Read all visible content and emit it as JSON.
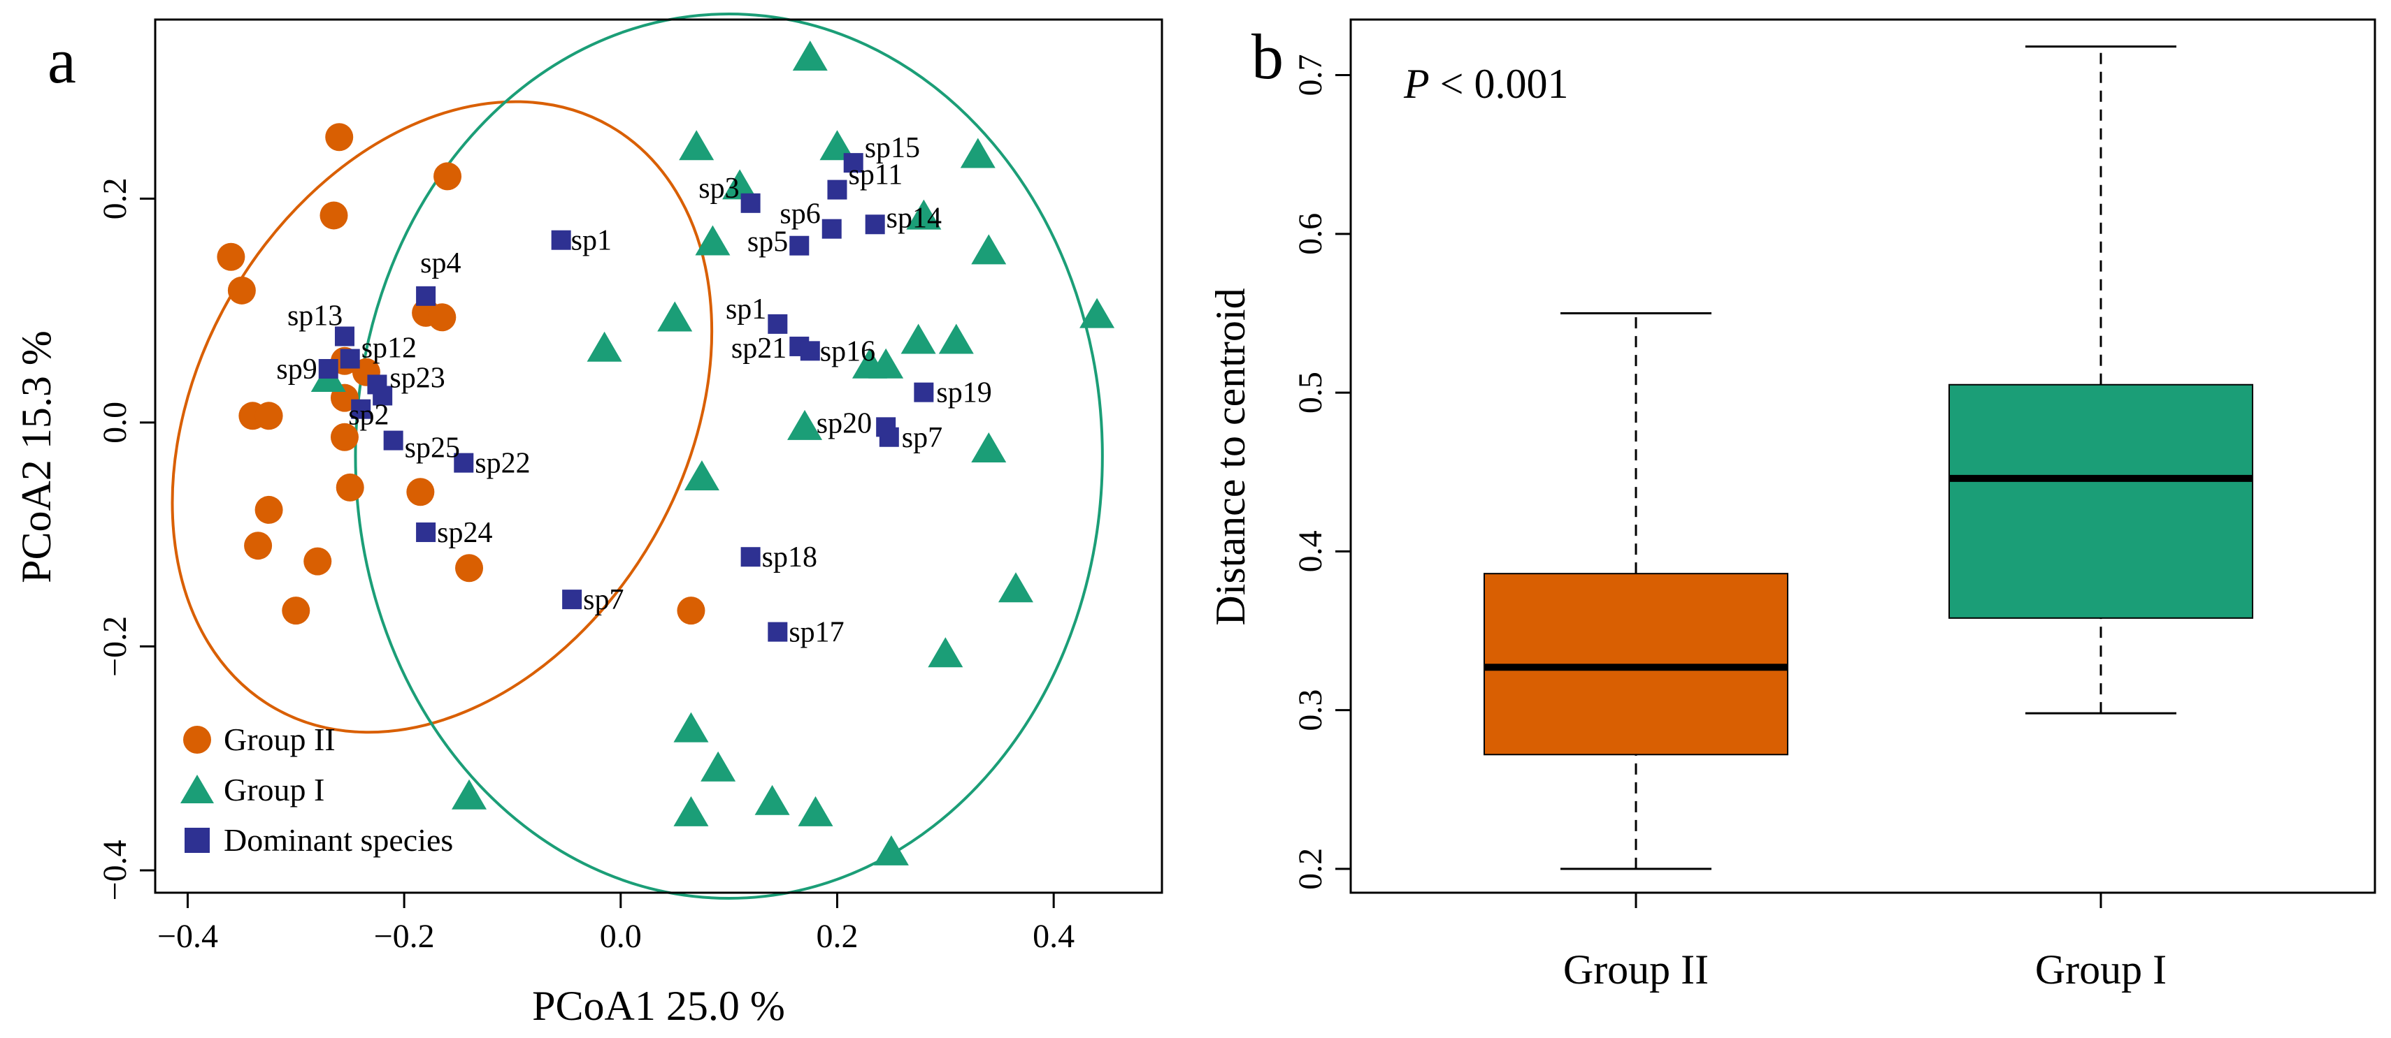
{
  "chart_data": [
    {
      "type": "scatter",
      "panel_label": "a",
      "xlabel": "PCoA1  25.0 %",
      "ylabel": "PCoA2  15.3 %",
      "xlim": [
        -0.43,
        0.5
      ],
      "ylim": [
        -0.42,
        0.36
      ],
      "xticks": [
        -0.4,
        -0.2,
        0.0,
        0.2,
        0.4
      ],
      "xtick_labels": [
        "−0.4",
        "−0.2",
        "0.0",
        "0.2",
        "0.4"
      ],
      "yticks": [
        -0.4,
        -0.2,
        0.0,
        0.2
      ],
      "ytick_labels": [
        "−0.4",
        "−0.2",
        "0.0",
        "0.2"
      ],
      "legend_position": "bottom-left",
      "legend": [
        {
          "label": "Group II",
          "marker": "circle",
          "color": "#d95f02"
        },
        {
          "label": "Group I",
          "marker": "triangle",
          "color": "#1b9e77"
        },
        {
          "label": "Dominant species",
          "marker": "square",
          "color": "#2e3192"
        }
      ],
      "series": [
        {
          "name": "Group II",
          "marker": "circle",
          "color": "#d95f02",
          "points": [
            [
              -0.26,
              0.255
            ],
            [
              -0.16,
              0.22
            ],
            [
              -0.36,
              0.148
            ],
            [
              -0.35,
              0.118
            ],
            [
              -0.265,
              0.185
            ],
            [
              -0.18,
              0.098
            ],
            [
              -0.165,
              0.094
            ],
            [
              -0.255,
              0.055
            ],
            [
              -0.235,
              0.045
            ],
            [
              -0.34,
              0.006
            ],
            [
              -0.325,
              0.006
            ],
            [
              -0.255,
              0.022
            ],
            [
              -0.255,
              -0.013
            ],
            [
              -0.25,
              -0.058
            ],
            [
              -0.185,
              -0.062
            ],
            [
              -0.325,
              -0.078
            ],
            [
              -0.335,
              -0.11
            ],
            [
              -0.28,
              -0.124
            ],
            [
              -0.14,
              -0.13
            ],
            [
              -0.3,
              -0.168
            ],
            [
              0.065,
              -0.168
            ]
          ]
        },
        {
          "name": "Group I",
          "marker": "triangle",
          "color": "#1b9e77",
          "points": [
            [
              0.175,
              0.325
            ],
            [
              0.07,
              0.245
            ],
            [
              0.2,
              0.245
            ],
            [
              0.33,
              0.238
            ],
            [
              0.11,
              0.21
            ],
            [
              0.28,
              0.183
            ],
            [
              0.085,
              0.16
            ],
            [
              0.34,
              0.152
            ],
            [
              0.05,
              0.092
            ],
            [
              0.44,
              0.095
            ],
            [
              -0.015,
              0.065
            ],
            [
              0.275,
              0.072
            ],
            [
              0.31,
              0.072
            ],
            [
              0.23,
              0.05
            ],
            [
              0.245,
              0.05
            ],
            [
              -0.27,
              0.038
            ],
            [
              0.17,
              -0.005
            ],
            [
              0.34,
              -0.025
            ],
            [
              0.075,
              -0.05
            ],
            [
              0.365,
              -0.15
            ],
            [
              0.3,
              -0.208
            ],
            [
              0.065,
              -0.275
            ],
            [
              0.09,
              -0.31
            ],
            [
              -0.14,
              -0.335
            ],
            [
              0.14,
              -0.34
            ],
            [
              0.065,
              -0.35
            ],
            [
              0.18,
              -0.35
            ],
            [
              0.25,
              -0.385
            ]
          ]
        },
        {
          "name": "Dominant species",
          "marker": "square",
          "color": "#2e3192",
          "points": [
            {
              "label": "sp15",
              "x": 0.215,
              "y": 0.232
            },
            {
              "label": "sp11",
              "x": 0.2,
              "y": 0.208
            },
            {
              "label": "sp3",
              "x": 0.12,
              "y": 0.196
            },
            {
              "label": "sp6",
              "x": 0.195,
              "y": 0.173
            },
            {
              "label": "sp14",
              "x": 0.235,
              "y": 0.177
            },
            {
              "label": "sp5",
              "x": 0.165,
              "y": 0.158
            },
            {
              "label": "sp1",
              "x": -0.055,
              "y": 0.163
            },
            {
              "label": "sp4",
              "x": -0.18,
              "y": 0.113
            },
            {
              "label": "sp1",
              "x": 0.145,
              "y": 0.088
            },
            {
              "label": "sp13",
              "x": -0.255,
              "y": 0.077
            },
            {
              "label": "sp21",
              "x": 0.165,
              "y": 0.068
            },
            {
              "label": "sp16",
              "x": 0.175,
              "y": 0.064
            },
            {
              "label": "sp12",
              "x": -0.25,
              "y": 0.057
            },
            {
              "label": "sp9",
              "x": -0.27,
              "y": 0.048
            },
            {
              "label": "sp23",
              "x": -0.225,
              "y": 0.034
            },
            {
              "label": "",
              "x": -0.22,
              "y": 0.024
            },
            {
              "label": "sp19",
              "x": 0.28,
              "y": 0.027
            },
            {
              "label": "sp20",
              "x": 0.245,
              "y": -0.004
            },
            {
              "label": "sp7",
              "x": 0.248,
              "y": -0.013
            },
            {
              "label": "sp2",
              "x": -0.24,
              "y": 0.012
            },
            {
              "label": "sp25",
              "x": -0.21,
              "y": -0.016
            },
            {
              "label": "sp22",
              "x": -0.145,
              "y": -0.036
            },
            {
              "label": "sp24",
              "x": -0.18,
              "y": -0.098
            },
            {
              "label": "sp18",
              "x": 0.12,
              "y": -0.12
            },
            {
              "label": "sp7",
              "x": -0.045,
              "y": -0.158
            },
            {
              "label": "sp17",
              "x": 0.145,
              "y": -0.187
            }
          ]
        }
      ],
      "ellipses": [
        {
          "group": "Group II",
          "color": "#d95f02",
          "center": [
            -0.165,
            0.005
          ],
          "semi_axes": [
            0.225,
            0.3
          ],
          "rotation_deg": 30
        },
        {
          "group": "Group I",
          "color": "#1b9e77",
          "center": [
            0.1,
            -0.03
          ],
          "semi_axes": [
            0.345,
            0.395
          ],
          "rotation_deg": 0
        }
      ]
    },
    {
      "type": "box",
      "panel_label": "b",
      "annotation_italic": "P",
      "annotation_rest": " < 0.001",
      "xlabel": "",
      "ylabel": "Distance to centroid",
      "ylim": [
        0.185,
        0.735
      ],
      "yticks": [
        0.2,
        0.3,
        0.4,
        0.5,
        0.6,
        0.7
      ],
      "ytick_labels": [
        "0.2",
        "0.3",
        "0.4",
        "0.5",
        "0.6",
        "0.7"
      ],
      "categories": [
        "Group II",
        "Group I"
      ],
      "boxes": [
        {
          "name": "Group II",
          "color": "#d95f02",
          "min": 0.2,
          "q1": 0.272,
          "median": 0.327,
          "q3": 0.386,
          "max": 0.55
        },
        {
          "name": "Group I",
          "color": "#1b9e77",
          "min": 0.298,
          "q1": 0.358,
          "median": 0.446,
          "q3": 0.505,
          "max": 0.718
        }
      ]
    }
  ]
}
